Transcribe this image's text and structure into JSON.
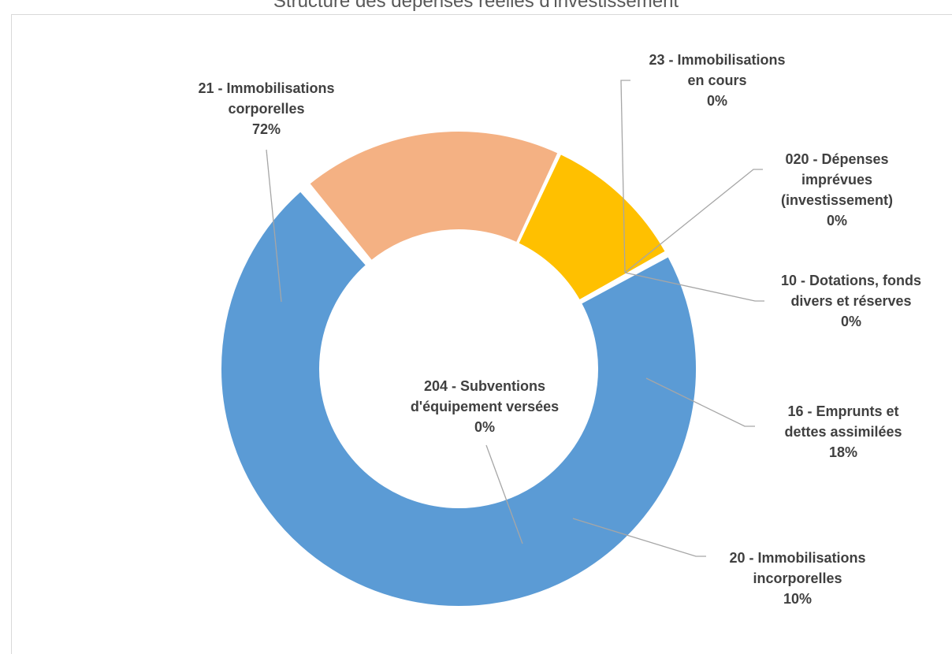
{
  "chart_data": {
    "type": "donut",
    "title": "Structure des dépenses réelles d'investissement",
    "slices": [
      {
        "name": "21 - Immobilisations corporelles",
        "label_lines": [
          "21 - Immobilisations",
          "corporelles"
        ],
        "percent_label": "72%",
        "value": 72,
        "color": "#5b9bd5"
      },
      {
        "name": "23 - Immobilisations en cours",
        "label_lines": [
          "23 - Immobilisations",
          "en cours"
        ],
        "percent_label": "0%",
        "value": 0.2,
        "color": "#264478"
      },
      {
        "name": "020 - Dépenses imprévues (investissement)",
        "label_lines": [
          "020 - Dépenses",
          "imprévues",
          "(investissement)"
        ],
        "percent_label": "0%",
        "value": 0.2,
        "color": "#9e480e"
      },
      {
        "name": "10 - Dotations, fonds divers et réserves",
        "label_lines": [
          "10 - Dotations, fonds",
          "divers et réserves"
        ],
        "percent_label": "0%",
        "value": 0.2,
        "color": "#636363"
      },
      {
        "name": "16 - Emprunts et dettes assimilées",
        "label_lines": [
          "16 - Emprunts et",
          "dettes assimilées"
        ],
        "percent_label": "18%",
        "value": 18,
        "color": "#f4b183"
      },
      {
        "name": "20 - Immobilisations incorporelles",
        "label_lines": [
          "20 - Immobilisations",
          "incorporelles"
        ],
        "percent_label": "10%",
        "value": 10,
        "color": "#ffc000"
      },
      {
        "name": "204 - Subventions d'équipement versées",
        "label_lines": [
          "204 - Subventions",
          "d'équipement versées"
        ],
        "percent_label": "0%",
        "value": 0.2,
        "color": "#a5a5a5"
      }
    ]
  }
}
